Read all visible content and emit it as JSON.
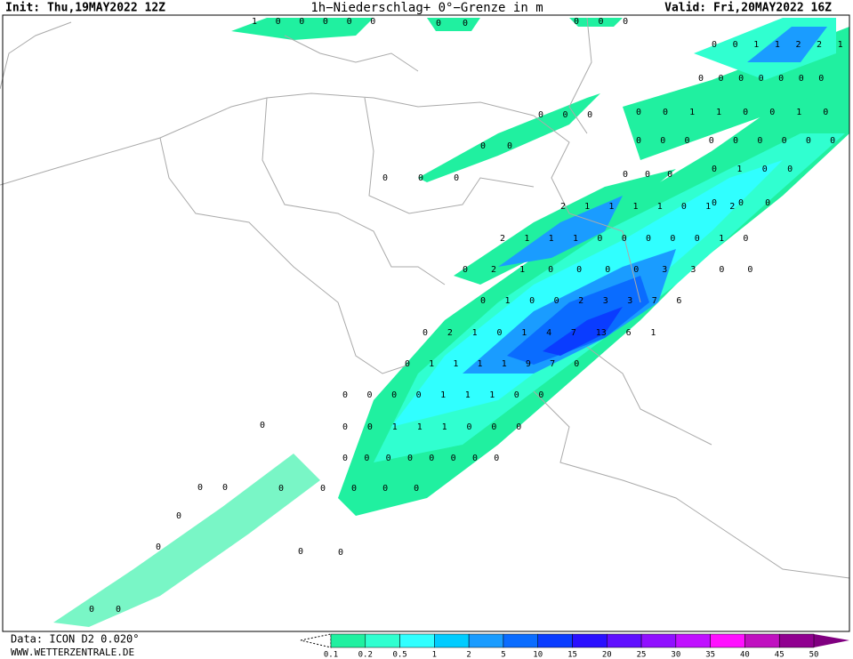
{
  "header": {
    "init": "Init: Thu,19MAY2022 12Z",
    "title": "1h−Niederschlag+ 0°−Grenze in m",
    "valid": "Valid: Fri,20MAY2022 16Z"
  },
  "footer": {
    "data": "Data: ICON D2 0.020°",
    "site": "WWW.WETTERZENTRALE.DE"
  },
  "legend": {
    "ticks": [
      0.1,
      0.2,
      0.5,
      1,
      2,
      5,
      10,
      15,
      20,
      25,
      30,
      35,
      40,
      45,
      50
    ],
    "colors": [
      "#20f0a0",
      "#30ffd0",
      "#30ffff",
      "#00ccff",
      "#1a9cff",
      "#0a6cff",
      "#0a3cff",
      "#2a10ff",
      "#6010ff",
      "#9010ff",
      "#c010ff",
      "#ff10ff",
      "#c010c0",
      "#900090"
    ]
  },
  "map": {
    "labels": [
      "1 0 0 0 0 0",
      "0 0",
      "0 0 0",
      "0 0 1 1 2 2 1 0",
      "0 0 0 0 0 0 0",
      "0 0 0",
      "0 0 1 1 0 0 1 0",
      "0 0 0 0 0 0 0 0 0 0",
      "0 0",
      "0 0 0",
      "0 1 0 0",
      "0 0 0",
      "2 1 1 1 1 0 1 2",
      "0 0 0",
      "2 1 1 1 0 0 0 0 0 1 0",
      "0 2 1 0 0 0 0 3 3 0 0",
      "0 1 0 0 2 3 3 7 6",
      "0 2 1 0 1 4 7 13 6 1",
      "0 1 1 1 1 9 7 0",
      "0 0 0 0 1 1 1 0 0",
      "0 0 1 1 1 0 0 0",
      "0 0 0 0 0 0 0 0",
      "0",
      "0 0",
      "0",
      "0 0 0 0",
      "0",
      "0",
      "0",
      "0",
      "0 0"
    ]
  }
}
